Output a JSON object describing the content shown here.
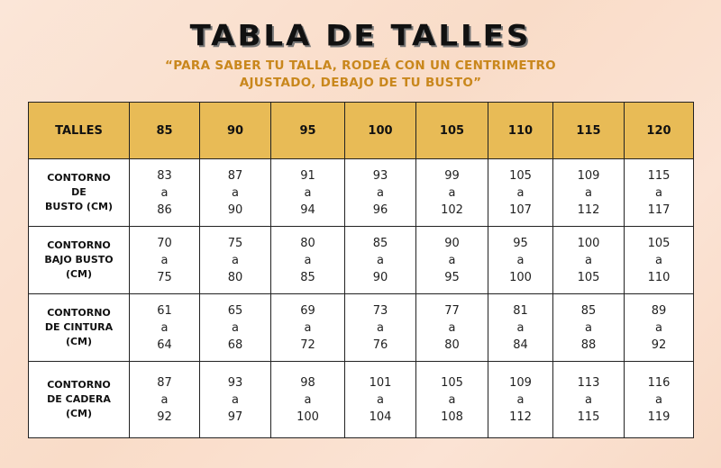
{
  "title": "TABLA DE TALLES",
  "subtitle_line1": "“PARA SABER TU TALLA, RODEÁ CON UN CENTRIMETRO",
  "subtitle_line2": "AJUSTADO, DEBAJO DE TU BUSTO”",
  "colors": {
    "header": "#e8bb56",
    "subtitle": "#c9871c"
  },
  "table": {
    "header": [
      "TALLES",
      "85",
      "90",
      "95",
      "100",
      "105",
      "110",
      "115",
      "120"
    ],
    "rows": [
      {
        "label": [
          "CONTORNO",
          "DE",
          "BUSTO (CM)"
        ],
        "cells": [
          [
            "83",
            "a",
            "86"
          ],
          [
            "87",
            "a",
            "90"
          ],
          [
            "91",
            "a",
            "94"
          ],
          [
            "93",
            "a",
            "96"
          ],
          [
            "99",
            "a",
            "102"
          ],
          [
            "105",
            "a",
            "107"
          ],
          [
            "109",
            "a",
            "112"
          ],
          [
            "115",
            "a",
            "117"
          ]
        ]
      },
      {
        "label": [
          "CONTORNO",
          "BAJO BUSTO",
          "(CM)"
        ],
        "cells": [
          [
            "70",
            "a",
            "75"
          ],
          [
            "75",
            "a",
            "80"
          ],
          [
            "80",
            "a",
            "85"
          ],
          [
            "85",
            "a",
            "90"
          ],
          [
            "90",
            "a",
            "95"
          ],
          [
            "95",
            "a",
            "100"
          ],
          [
            "100",
            "a",
            "105"
          ],
          [
            "105",
            "a",
            "110"
          ]
        ]
      },
      {
        "label": [
          "CONTORNO",
          "DE CINTURA",
          "(CM)"
        ],
        "cells": [
          [
            "61",
            "a",
            "64"
          ],
          [
            "65",
            "a",
            "68"
          ],
          [
            "69",
            "a",
            "72"
          ],
          [
            "73",
            "a",
            "76"
          ],
          [
            "77",
            "a",
            "80"
          ],
          [
            "81",
            "a",
            "84"
          ],
          [
            "85",
            "a",
            "88"
          ],
          [
            "89",
            "a",
            "92"
          ]
        ]
      },
      {
        "label": [
          "CONTORNO",
          "DE CADERA",
          "(CM)"
        ],
        "cells": [
          [
            "87",
            "a",
            "92"
          ],
          [
            "93",
            "a",
            "97"
          ],
          [
            "98",
            "a",
            "100"
          ],
          [
            "101",
            "a",
            "104"
          ],
          [
            "105",
            "a",
            "108"
          ],
          [
            "109",
            "a",
            "112"
          ],
          [
            "113",
            "a",
            "115"
          ],
          [
            "116",
            "a",
            "119"
          ]
        ]
      }
    ]
  }
}
